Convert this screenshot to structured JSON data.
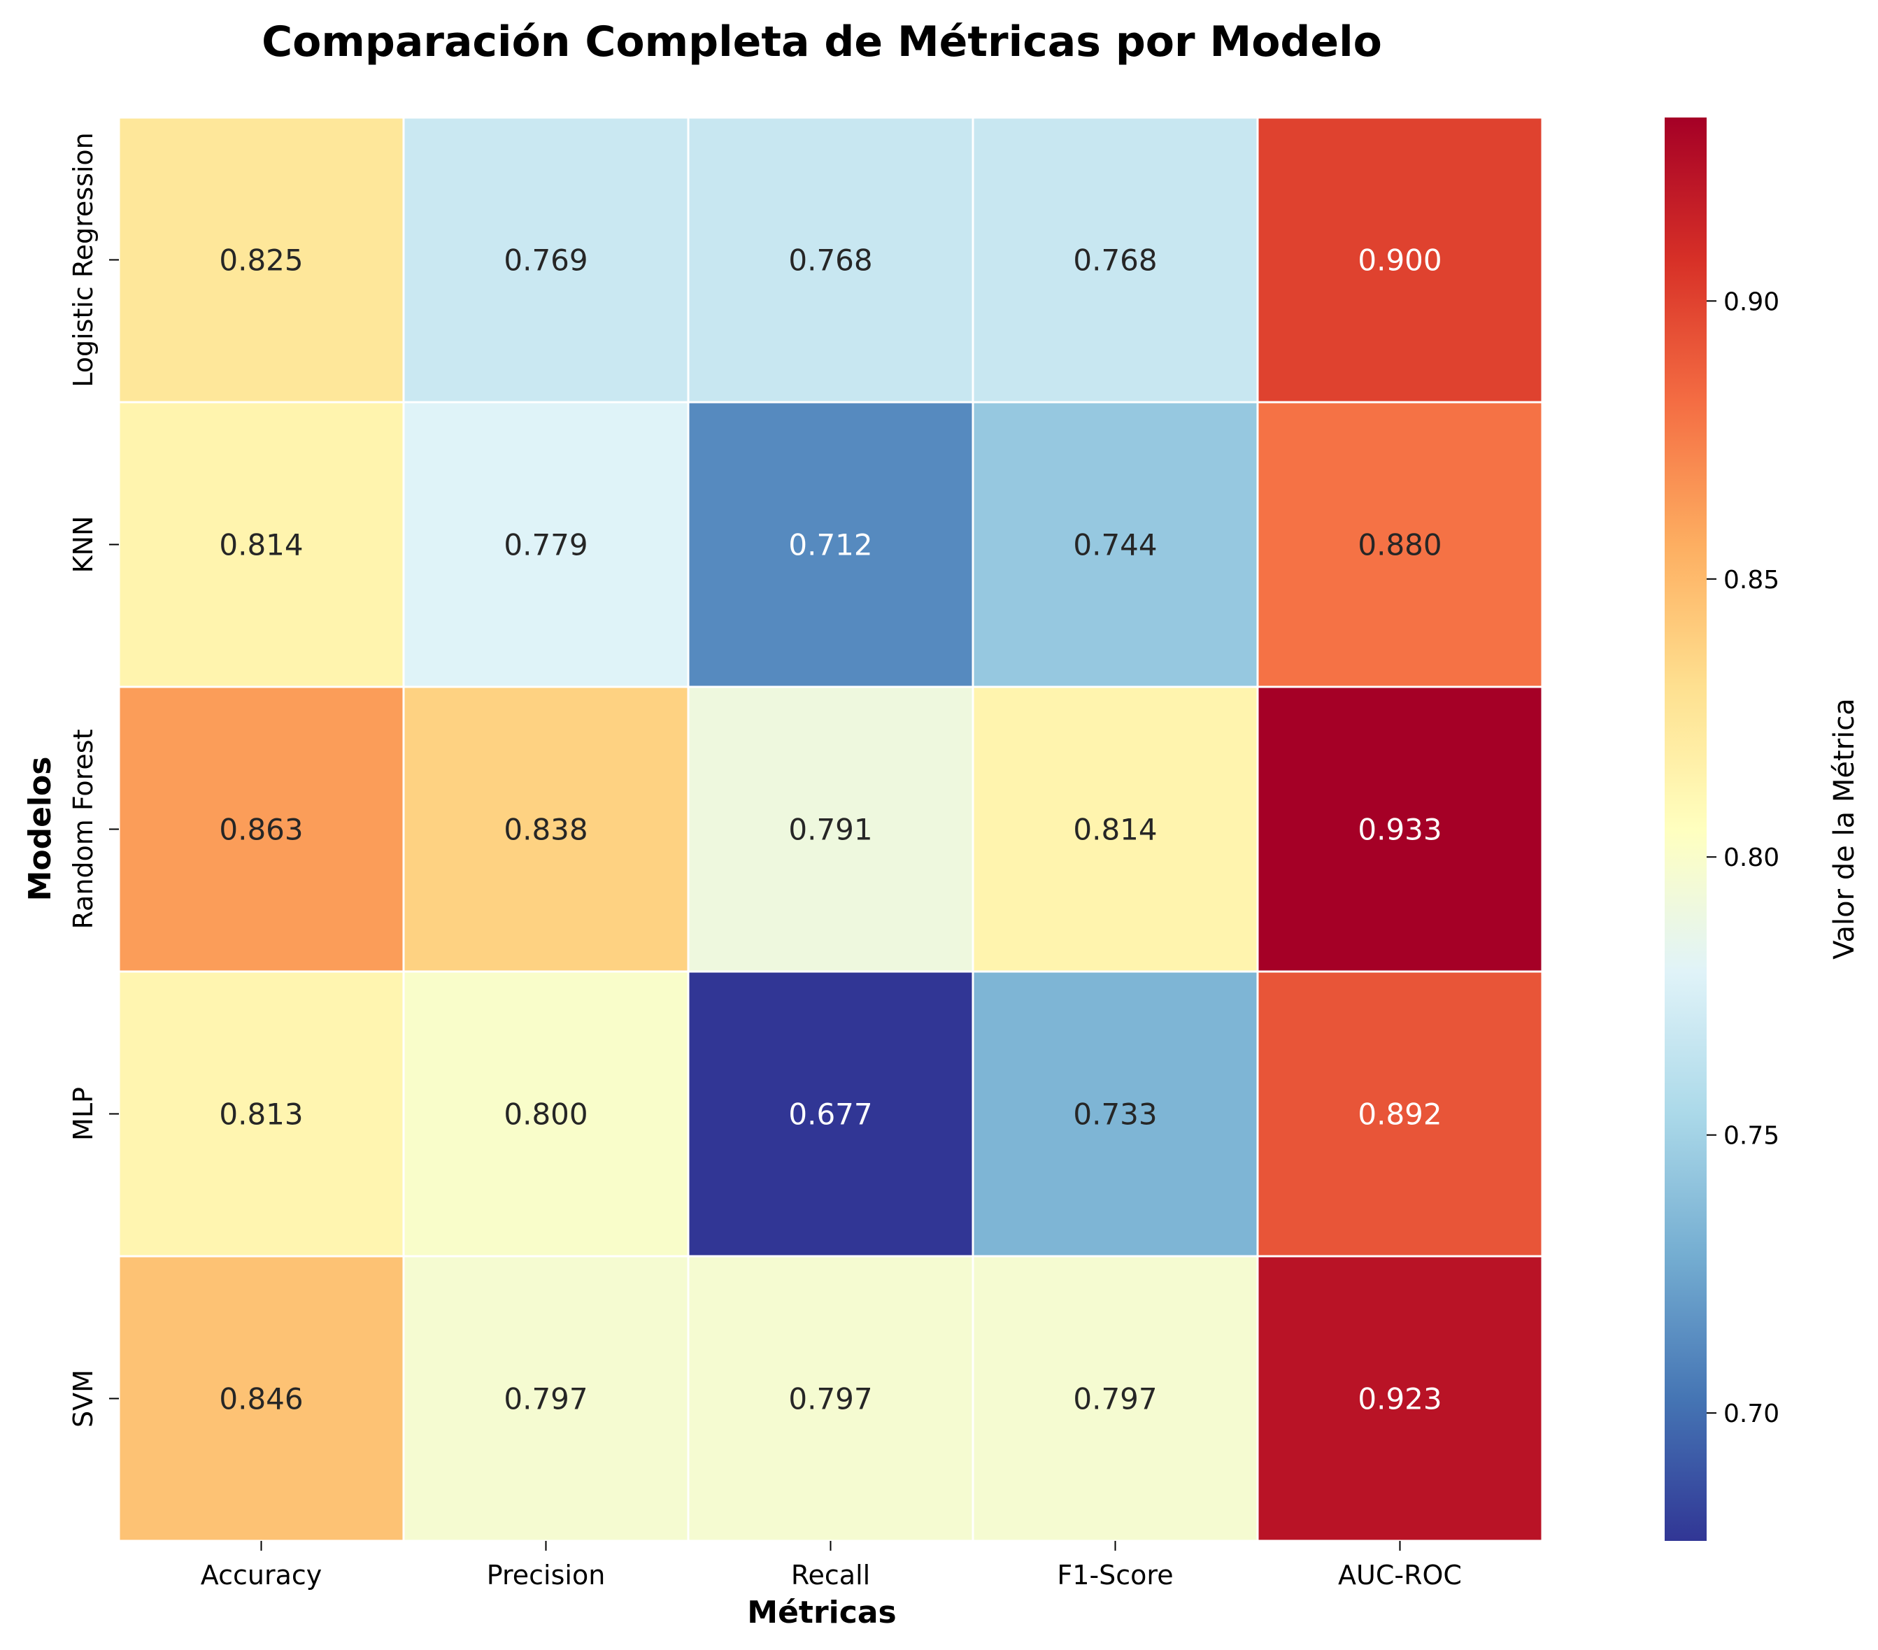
{
  "chart_data": {
    "type": "heatmap",
    "title": "Comparación Completa de Métricas por Modelo",
    "xlabel": "Métricas",
    "ylabel": "Modelos",
    "x_categories": [
      "Accuracy",
      "Precision",
      "Recall",
      "F1-Score",
      "AUC-ROC"
    ],
    "y_categories": [
      "Logistic Regression",
      "KNN",
      "Random Forest",
      "MLP",
      "SVM"
    ],
    "values": [
      [
        0.825,
        0.769,
        0.768,
        0.768,
        0.9
      ],
      [
        0.814,
        0.779,
        0.712,
        0.744,
        0.88
      ],
      [
        0.863,
        0.838,
        0.791,
        0.814,
        0.933
      ],
      [
        0.813,
        0.8,
        0.677,
        0.733,
        0.892
      ],
      [
        0.846,
        0.797,
        0.797,
        0.797,
        0.923
      ]
    ],
    "value_labels": [
      [
        "0.825",
        "0.769",
        "0.768",
        "0.768",
        "0.900"
      ],
      [
        "0.814",
        "0.779",
        "0.712",
        "0.744",
        "0.880"
      ],
      [
        "0.863",
        "0.838",
        "0.791",
        "0.814",
        "0.933"
      ],
      [
        "0.813",
        "0.800",
        "0.677",
        "0.733",
        "0.892"
      ],
      [
        "0.846",
        "0.797",
        "0.797",
        "0.797",
        "0.923"
      ]
    ],
    "colorbar": {
      "label": "Valor de la Métrica",
      "range": [
        0.677,
        0.933
      ],
      "ticks": [
        0.7,
        0.75,
        0.8,
        0.85,
        0.9
      ],
      "tick_labels": [
        "0.70",
        "0.75",
        "0.80",
        "0.85",
        "0.90"
      ],
      "colormap": "RdYlBu_r"
    }
  }
}
